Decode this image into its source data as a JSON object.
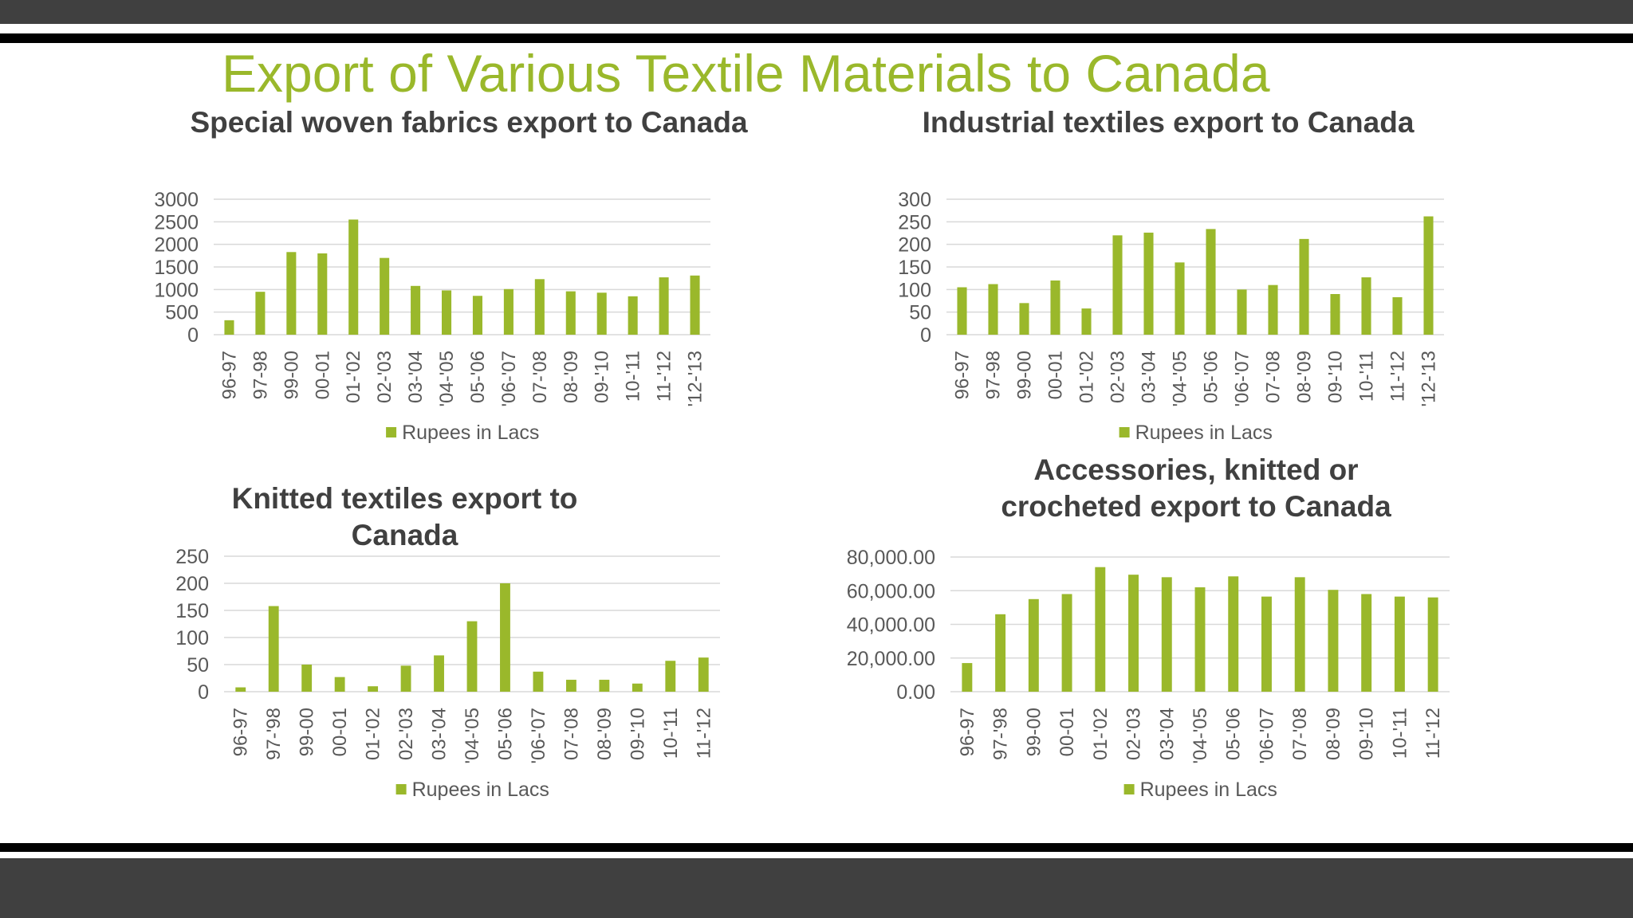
{
  "slide": {
    "title": "Export of Various Textile Materials to Canada"
  },
  "colors": {
    "accent": "#9ab82b",
    "bar": "#9ab82b",
    "band": "#404040",
    "text": "#404040",
    "axis_text": "#595959",
    "gridline": "#d9d9d9"
  },
  "chart_data": [
    {
      "type": "bar",
      "title": "Special woven fabrics export to Canada",
      "categories": [
        "96-97",
        "97-98",
        "99-00",
        "00-01",
        "01-'02",
        "02-'03",
        "03-'04",
        "'04-'05",
        "05-'06",
        "'06-'07",
        "07-'08",
        "08-'09",
        "09-'10",
        "10-'11",
        "11-'12",
        "'12-'13"
      ],
      "series": [
        {
          "name": "Rupees in Lacs",
          "values": [
            320,
            950,
            1830,
            1800,
            2550,
            1700,
            1080,
            980,
            860,
            1010,
            1230,
            960,
            930,
            850,
            1270,
            1310
          ]
        }
      ],
      "ylim": [
        0,
        3000
      ],
      "yticks": [
        0,
        500,
        1000,
        1500,
        2000,
        2500,
        3000
      ],
      "ytick_labels": [
        "0",
        "500",
        "1000",
        "1500",
        "2000",
        "2500",
        "3000"
      ],
      "grid": true,
      "legend": "bottom"
    },
    {
      "type": "bar",
      "title": "Industrial textiles export to Canada",
      "categories": [
        "96-97",
        "97-98",
        "99-00",
        "00-01",
        "01-'02",
        "02-'03",
        "03-'04",
        "'04-'05",
        "05-'06",
        "'06-'07",
        "07-'08",
        "08-'09",
        "09-'10",
        "10-'11",
        "11-'12",
        "'12-'13"
      ],
      "series": [
        {
          "name": "Rupees in Lacs",
          "values": [
            105,
            112,
            70,
            120,
            58,
            220,
            226,
            160,
            234,
            100,
            110,
            212,
            90,
            127,
            83,
            262
          ]
        }
      ],
      "ylim": [
        0,
        300
      ],
      "yticks": [
        0,
        50,
        100,
        150,
        200,
        250,
        300
      ],
      "ytick_labels": [
        "0",
        "50",
        "100",
        "150",
        "200",
        "250",
        "300"
      ],
      "grid": true,
      "legend": "bottom"
    },
    {
      "type": "bar",
      "title": "Knitted textiles export to Canada",
      "categories": [
        "96-97",
        "97-'98",
        "99-00",
        "00-01",
        "01-'02",
        "02-'03",
        "03-'04",
        "'04-'05",
        "05-'06",
        "'06-'07",
        "07-'08",
        "08-'09",
        "09-'10",
        "10-'11",
        "11-'12"
      ],
      "series": [
        {
          "name": "Rupees in Lacs",
          "values": [
            8,
            158,
            50,
            27,
            10,
            48,
            67,
            130,
            200,
            37,
            22,
            22,
            15,
            57,
            63
          ]
        }
      ],
      "ylim": [
        0,
        250
      ],
      "yticks": [
        0,
        50,
        100,
        150,
        200,
        250
      ],
      "ytick_labels": [
        "0",
        "50",
        "100",
        "150",
        "200",
        "250"
      ],
      "grid": true,
      "legend": "bottom"
    },
    {
      "type": "bar",
      "title": "Accessories, knitted or crocheted export to Canada",
      "categories": [
        "96-97",
        "97-'98",
        "99-00",
        "00-01",
        "01-'02",
        "02-'03",
        "03-'04",
        "'04-'05",
        "05-'06",
        "'06-'07",
        "07-'08",
        "08-'09",
        "09-'10",
        "10-'11",
        "11-'12"
      ],
      "series": [
        {
          "name": "Rupees in Lacs",
          "values": [
            17000,
            46000,
            55000,
            58000,
            74000,
            69500,
            68000,
            62000,
            68500,
            56500,
            68000,
            60500,
            58000,
            56500,
            56000
          ]
        }
      ],
      "ylim": [
        0,
        80000
      ],
      "yticks": [
        0,
        20000,
        40000,
        60000,
        80000
      ],
      "ytick_labels": [
        "0.00",
        "20,000.00",
        "40,000.00",
        "60,000.00",
        "80,000.00"
      ],
      "grid": true,
      "legend": "bottom"
    }
  ]
}
